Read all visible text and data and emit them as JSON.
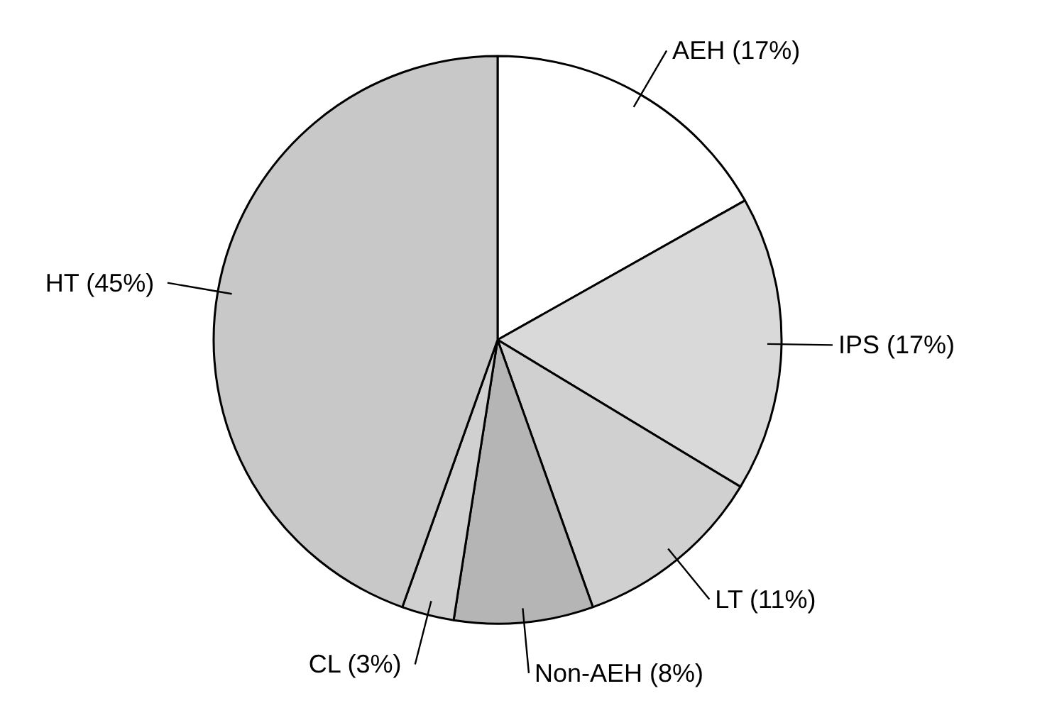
{
  "chart_data": {
    "type": "pie",
    "categories": [
      "AEH",
      "IPS",
      "LT",
      "Non-AEH",
      "CL",
      "HT"
    ],
    "values": [
      17,
      17,
      11,
      8,
      3,
      45
    ],
    "value_labels": [
      "(17%)",
      "(17%)",
      "(11%)",
      "(8%)",
      "(3%)",
      "(45%)"
    ],
    "colors": [
      "#ffffff",
      "#d9d9d9",
      "#d0d0d0",
      "#b5b5b5",
      "#d0d0d0",
      "#c8c8c8"
    ]
  }
}
